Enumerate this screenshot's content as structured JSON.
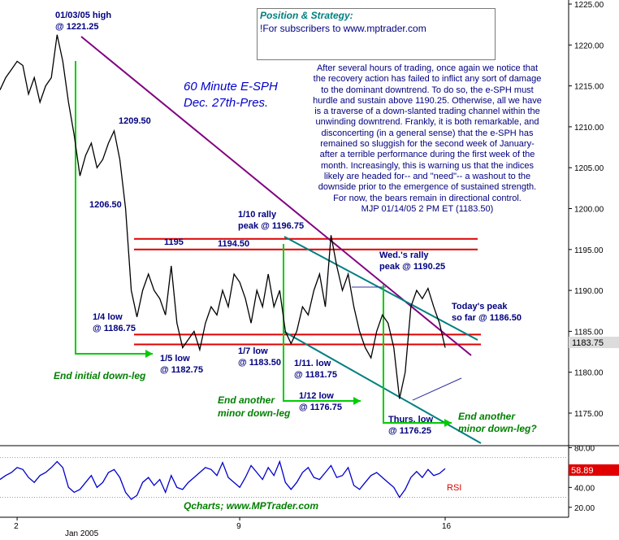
{
  "chart_data": [
    {
      "type": "line",
      "title": "60 Minute E-SPH",
      "subtitle": "Dec. 27th-Pres.",
      "xlabel": "",
      "ylabel": "",
      "y_ticks": [
        1175.0,
        1180.0,
        1185.0,
        1190.0,
        1195.0,
        1200.0,
        1205.0,
        1210.0,
        1215.0,
        1220.0,
        1225.0
      ],
      "y_tick_labels": [
        "1175.00",
        "1180.00",
        "1185.00",
        "1190.00",
        "1195.00",
        "1200.00",
        "1205.00",
        "1210.00",
        "1215.00",
        "1220.00",
        "1225.00"
      ],
      "ylim": [
        1170.5,
        1225.5
      ],
      "x_tick_labels": [
        {
          "label": "2",
          "at": 6
        },
        {
          "label": "9",
          "at": 84
        },
        {
          "label": "16",
          "at": 156
        }
      ],
      "x_sublabel": "Jan 2005",
      "last_price_label": "1183.75",
      "series": [
        {
          "x": [
            0,
            2,
            4,
            6,
            8,
            10,
            12,
            14,
            16,
            18,
            20,
            22,
            24,
            26,
            28,
            30,
            32,
            34,
            36,
            38,
            40,
            42,
            44,
            46,
            48,
            50,
            52,
            54,
            56,
            58,
            60,
            62,
            64,
            66,
            68,
            70,
            72,
            74,
            76,
            78,
            80,
            82,
            84,
            86,
            88,
            90,
            92,
            94,
            96,
            98,
            100,
            102,
            104,
            106,
            108,
            110,
            112,
            114,
            116,
            118,
            120,
            122,
            124,
            126,
            128,
            130,
            132,
            134,
            136,
            138,
            140,
            142,
            144,
            146,
            148,
            150,
            152,
            154,
            156
          ],
          "values": [
            1214.5,
            1216,
            1217,
            1218,
            1217.5,
            1214,
            1216,
            1213,
            1215,
            1216,
            1221.25,
            1218,
            1213,
            1209,
            1204,
            1206.5,
            1208,
            1205,
            1206,
            1208,
            1209.5,
            1206,
            1200,
            1190,
            1186.75,
            1190,
            1192,
            1190,
            1189,
            1187,
            1193,
            1186,
            1183,
            1184,
            1185,
            1182.75,
            1186,
            1188,
            1187,
            1190,
            1188,
            1192,
            1191,
            1189,
            1186,
            1190,
            1188,
            1192,
            1188,
            1190,
            1185,
            1183.5,
            1185,
            1188,
            1187,
            1190,
            1192,
            1188,
            1196.75,
            1193,
            1190,
            1192,
            1188,
            1185,
            1183,
            1181.75,
            1185,
            1187,
            1186,
            1183,
            1176.75,
            1180,
            1188,
            1190,
            1189,
            1190.25,
            1188,
            1186,
            1183
          ]
        },
        {
          "name": "RSI",
          "ylim": [
            10,
            82
          ],
          "y_ticks": [
            20,
            40,
            60,
            80
          ],
          "y_tick_labels": [
            "20.00",
            "40.00",
            "60.00",
            "80.00"
          ],
          "last_value_label": "58.89",
          "values": [
            48,
            52,
            55,
            60,
            58,
            50,
            45,
            52,
            55,
            60,
            66,
            60,
            40,
            35,
            38,
            45,
            52,
            40,
            45,
            55,
            58,
            50,
            35,
            28,
            32,
            45,
            50,
            42,
            48,
            35,
            52,
            40,
            38,
            45,
            50,
            55,
            60,
            58,
            52,
            65,
            50,
            45,
            40,
            50,
            62,
            55,
            48,
            60,
            52,
            66,
            45,
            38,
            45,
            55,
            60,
            50,
            48,
            55,
            62,
            50,
            52,
            60,
            42,
            38,
            45,
            52,
            55,
            50,
            45,
            40,
            30,
            38,
            50,
            56,
            50,
            58,
            52,
            54,
            58.89
          ]
        }
      ],
      "annotations": [
        {
          "label": "01/03/05 high",
          "value": "@ 1221.25"
        },
        {
          "label": "1209.50"
        },
        {
          "label": "1206.50"
        },
        {
          "label": "1195"
        },
        {
          "label": "1194.50"
        },
        {
          "label": "1/10 rally",
          "value": "peak @ 1196.75"
        },
        {
          "label": "Wed.'s rally",
          "value": "peak @ 1190.25"
        },
        {
          "label": "1/4 low",
          "value": "@ 1186.75"
        },
        {
          "label": "1/5 low",
          "value": "@ 1182.75"
        },
        {
          "label": "1/7 low",
          "value": "@ 1183.50"
        },
        {
          "label": "1/11. low",
          "value": "@ 1181.75"
        },
        {
          "label": "1/12 low",
          "value": "@ 1176.75"
        },
        {
          "label": "Thurs. low",
          "value": "@ 1176.25"
        },
        {
          "label": "Today's peak",
          "value": "so far @ 1186.50"
        }
      ]
    }
  ],
  "labels": {
    "end_initial": "End initial down-leg",
    "end_another_1": "End another",
    "end_another_1b": "minor down-leg",
    "end_another_2": "End another",
    "end_another_2b": "minor down-leg?"
  },
  "position_box": {
    "title": "Position & Strategy:",
    "text": "!For subscribers to www.mptrader.com"
  },
  "commentary": [
    "After several hours of trading, once again we notice that",
    "the recovery action has failed to inflict any sort of damage",
    "to the dominant downtrend. To do so, the e-SPH must",
    "hurdle and sustain above 1190.25. Otherwise, all we have",
    "is a traverse of a down-slanted trading channel within the",
    "unwinding downtrend. Frankly, it is both remarkable, and",
    "disconcerting (in a general sense) that the e-SPH has",
    "remained so sluggish for the second week of January-",
    "after a terrible performance during the first week of the",
    "month. Increasingly, this is warning us that the indices",
    "likely are headed for-- and \"need\"-- a washout to the",
    "downside prior to the emergence of sustained strength.",
    "For now, the bears remain in directional control.",
    "MJP 01/14/05  2 PM ET (1183.50)"
  ],
  "footer": "Qcharts; www.MPTrader.com",
  "colors": {
    "price": "#000000",
    "rsi": "#0000cc",
    "red_lines": "#e00000",
    "purple_trend": "#800080",
    "teal_channel": "#008080",
    "green_arrows": "#00cc00"
  }
}
